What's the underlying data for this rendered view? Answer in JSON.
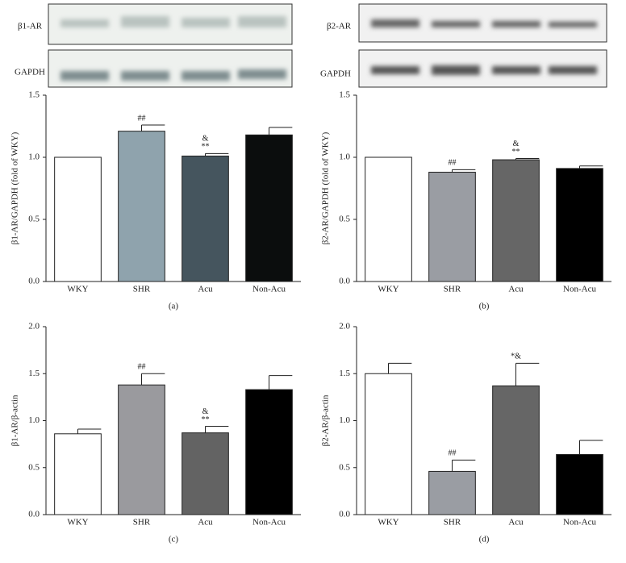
{
  "blots": {
    "left": [
      "β1-AR",
      "GAPDH"
    ],
    "right": [
      "β2-AR",
      "GAPDH"
    ]
  },
  "chart_data": [
    {
      "type": "bar",
      "caption": "(a)",
      "y_label": "β1-AR/GAPDH (fold of WKY)",
      "categories": [
        "WKY",
        "SHR",
        "Acu",
        "Non-Acu"
      ],
      "values": [
        1.0,
        1.21,
        1.01,
        1.18
      ],
      "errors": [
        null,
        0.05,
        0.02,
        0.06
      ],
      "colors": [
        "#ffffff",
        "#8fa3ad",
        "#45555e",
        "#0b0d0d"
      ],
      "annotations": [
        null,
        [
          "##"
        ],
        [
          "&",
          "**"
        ],
        null
      ],
      "ylim": [
        0,
        1.5
      ],
      "yticks": [
        {
          "value": 0,
          "label": "0.0"
        },
        0.5,
        {
          "value": 1,
          "label": "1.0"
        },
        1.5
      ]
    },
    {
      "type": "bar",
      "caption": "(b)",
      "y_label": "β2-AR/GAPDH (fold of WKY)",
      "categories": [
        "WKY",
        "SHR",
        "Acu",
        "Non-Acu"
      ],
      "values": [
        1.0,
        0.88,
        0.98,
        0.91
      ],
      "errors": [
        null,
        0.02,
        0.01,
        0.02
      ],
      "colors": [
        "#ffffff",
        "#9a9da3",
        "#666666",
        "#000000"
      ],
      "annotations": [
        null,
        [
          "##"
        ],
        [
          "&",
          "**"
        ],
        null
      ],
      "ylim": [
        0,
        1.5
      ],
      "yticks": [
        {
          "value": 0,
          "label": "0.0"
        },
        0.5,
        {
          "value": 1,
          "label": "1.0"
        },
        1.5
      ]
    },
    {
      "type": "bar",
      "caption": "(c)",
      "y_label": "β1-AR/β-actin",
      "categories": [
        "WKY",
        "SHR",
        "Acu",
        "Non-Acu"
      ],
      "values": [
        0.86,
        1.38,
        0.87,
        1.33
      ],
      "errors": [
        0.05,
        0.12,
        0.07,
        0.15
      ],
      "colors": [
        "#ffffff",
        "#9a9a9e",
        "#636363",
        "#000000"
      ],
      "annotations": [
        null,
        [
          "##"
        ],
        [
          "&",
          "**"
        ],
        null
      ],
      "ylim": [
        0,
        2
      ],
      "yticks": [
        {
          "value": 0,
          "label": "0.0"
        },
        0.5,
        {
          "value": 1,
          "label": "1.0"
        },
        1.5,
        {
          "value": 2,
          "label": "2.0"
        }
      ]
    },
    {
      "type": "bar",
      "caption": "(d)",
      "y_label": "β2-AR/β-actin",
      "categories": [
        "WKY",
        "SHR",
        "Acu",
        "Non-Acu"
      ],
      "values": [
        1.5,
        0.46,
        1.37,
        0.64
      ],
      "errors": [
        0.11,
        0.12,
        0.24,
        0.15
      ],
      "colors": [
        "#ffffff",
        "#9a9da3",
        "#666666",
        "#000000"
      ],
      "annotations": [
        null,
        [
          "##"
        ],
        [
          "*&"
        ],
        null
      ],
      "ylim": [
        0,
        2
      ],
      "yticks": [
        {
          "value": 0,
          "label": "0.0"
        },
        0.5,
        {
          "value": 1,
          "label": "1.0"
        },
        1.5,
        {
          "value": 2,
          "label": "2.0"
        }
      ]
    }
  ]
}
